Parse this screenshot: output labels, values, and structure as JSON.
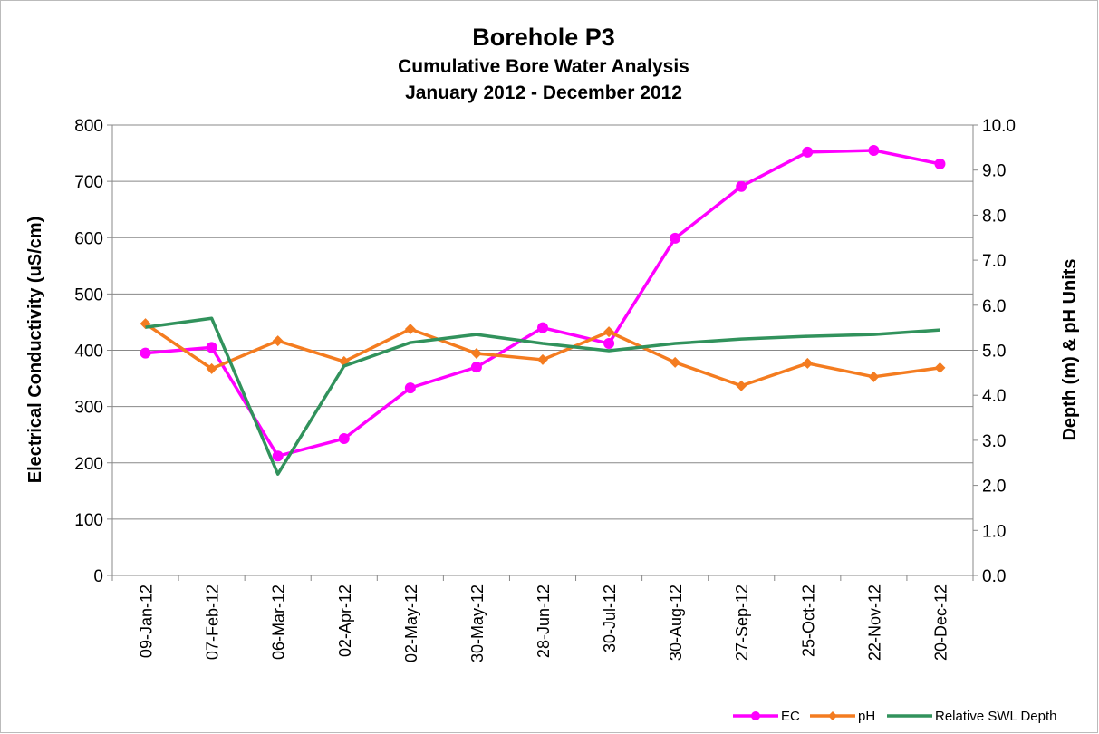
{
  "chart_data": {
    "type": "line",
    "title": "Borehole P3",
    "subtitle": [
      "Cumulative Bore Water Analysis",
      "January 2012 - December 2012"
    ],
    "ylabel": "Electrical Conductivity (uS/cm)",
    "y2label": "Depth (m) & pH Units",
    "categories": [
      "09-Jan-12",
      "07-Feb-12",
      "06-Mar-12",
      "02-Apr-12",
      "02-May-12",
      "30-May-12",
      "28-Jun-12",
      "30-Jul-12",
      "30-Aug-12",
      "27-Sep-12",
      "25-Oct-12",
      "22-Nov-12",
      "20-Dec-12"
    ],
    "series": [
      {
        "name": "EC",
        "color": "#ff00ff",
        "marker": "circle",
        "values": [
          395,
          405,
          212,
          243,
          333,
          370,
          440,
          412,
          599,
          691,
          752,
          755,
          731
        ]
      },
      {
        "name": "pH",
        "color": "#f47c20",
        "marker": "diamond",
        "axis": "y2",
        "values": [
          5.59,
          4.59,
          5.21,
          4.75,
          5.47,
          4.93,
          4.79,
          5.41,
          4.73,
          4.21,
          4.71,
          4.41,
          4.61
        ]
      },
      {
        "name": "Relative SWL Depth",
        "color": "#31925c",
        "marker": "none",
        "axis": "y2",
        "values": [
          5.51,
          5.71,
          2.25,
          4.65,
          5.17,
          5.35,
          5.15,
          4.99,
          5.15,
          5.25,
          5.31,
          5.35,
          5.45
        ]
      }
    ],
    "ylim": [
      0,
      800
    ],
    "yticks": [
      0,
      100,
      200,
      300,
      400,
      500,
      600,
      700,
      800
    ],
    "y2lim": [
      0,
      10
    ],
    "y2ticks": [
      {
        "value": 0,
        "label": "0.0"
      },
      {
        "value": 1,
        "label": "1.0"
      },
      {
        "value": 2,
        "label": "2.0"
      },
      {
        "value": 3,
        "label": "3.0"
      },
      {
        "value": 4,
        "label": "4.0"
      },
      {
        "value": 5,
        "label": "5.0"
      },
      {
        "value": 6,
        "label": "6.0"
      },
      {
        "value": 7,
        "label": "7.0"
      },
      {
        "value": 8,
        "label": "8.0"
      },
      {
        "value": 9,
        "label": "9.0"
      },
      {
        "value": 10,
        "label": "10.0"
      }
    ],
    "grid": true,
    "legend": "bottom-right"
  }
}
